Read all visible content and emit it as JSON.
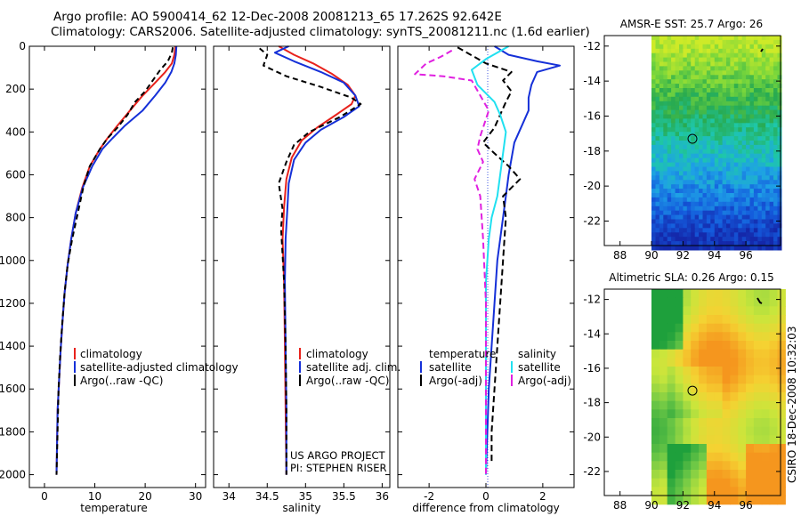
{
  "header": {
    "line1": "Argo profile: AO 5900414_62 12-Dec-2008 20081213_65 17.262S 92.642E",
    "line2": "Climatology: CARS2006. Satellite-adjusted climatology: synTS_20081211.nc (1.6d earlier)"
  },
  "colors": {
    "climatology": "#e8221c",
    "satellite": "#1530d8",
    "argo": "#000000",
    "argo_sal_diff": "#e020e0",
    "sat_sal_diff": "#20e0f0"
  },
  "chart_data": [
    {
      "id": "temperature",
      "type": "line",
      "xlabel": "temperature",
      "ylabel": "",
      "xlim": [
        -3,
        32
      ],
      "ylim": [
        2060,
        0
      ],
      "xticks": [
        0,
        10,
        20,
        30
      ],
      "yticks": [
        0,
        200,
        400,
        600,
        800,
        1000,
        1200,
        1400,
        1600,
        1800,
        2000
      ],
      "legend": [
        "climatology",
        "satellite-adjusted climatology",
        "Argo(..raw -QC)"
      ],
      "series": [
        {
          "name": "climatology",
          "color": "#e8221c",
          "x": [
            26,
            25.8,
            25.3,
            24,
            22,
            19.5,
            17,
            14.5,
            12.5,
            11,
            9,
            7.5,
            6.2,
            5.3,
            4.6,
            4,
            3.6,
            3.2,
            2.9,
            2.6,
            2.5,
            2.4
          ],
          "y": [
            0,
            40,
            80,
            120,
            170,
            230,
            300,
            370,
            430,
            480,
            560,
            660,
            780,
            900,
            1020,
            1150,
            1280,
            1420,
            1560,
            1700,
            1850,
            2000
          ]
        },
        {
          "name": "satellite-adjusted climatology",
          "color": "#1530d8",
          "x": [
            26.2,
            26.1,
            25.8,
            25.2,
            24,
            22,
            19.5,
            16,
            13.5,
            11.5,
            9.5,
            7.6,
            6.2,
            5.3,
            4.6,
            4,
            3.6,
            3.2,
            2.9,
            2.6,
            2.5,
            2.4
          ],
          "y": [
            0,
            40,
            80,
            120,
            170,
            230,
            300,
            370,
            430,
            480,
            560,
            660,
            780,
            900,
            1020,
            1150,
            1280,
            1420,
            1560,
            1700,
            1850,
            2000
          ]
        },
        {
          "name": "Argo(..raw -QC)",
          "color": "#000000",
          "dash": "6,4",
          "x": [
            25.5,
            25.3,
            24.5,
            23,
            21.5,
            20,
            18,
            16.5,
            14.5,
            12.5,
            11,
            9,
            7.8,
            6.8,
            5.5,
            4.6,
            4,
            3.5,
            3.1,
            2.8,
            2.6,
            2.4
          ],
          "y": [
            5,
            30,
            70,
            110,
            160,
            210,
            260,
            320,
            380,
            430,
            480,
            560,
            650,
            760,
            900,
            1020,
            1150,
            1300,
            1450,
            1600,
            1800,
            2000
          ]
        }
      ]
    },
    {
      "id": "salinity",
      "type": "line",
      "xlabel": "salinity",
      "ylabel": "",
      "xlim": [
        33.8,
        36.1
      ],
      "ylim": [
        2060,
        0
      ],
      "xticks": [
        34,
        34.5,
        35,
        35.5,
        36
      ],
      "yticks": [
        0,
        200,
        400,
        600,
        800,
        1000,
        1200,
        1400,
        1600,
        1800,
        2000
      ],
      "legend": [
        "climatology",
        "satellite adj. clim.",
        "Argo(..raw -QC)"
      ],
      "series": [
        {
          "name": "climatology",
          "color": "#e8221c",
          "x": [
            34.65,
            34.85,
            35.1,
            35.35,
            35.55,
            35.65,
            35.6,
            35.4,
            35.15,
            34.95,
            34.82,
            34.75,
            34.72,
            34.7,
            34.72,
            34.73,
            34.74,
            34.75
          ],
          "y": [
            0,
            40,
            80,
            130,
            180,
            230,
            270,
            320,
            380,
            440,
            520,
            620,
            750,
            900,
            1100,
            1400,
            1700,
            2000
          ]
        },
        {
          "name": "satellite adj. clim.",
          "color": "#1530d8",
          "x": [
            34.78,
            34.6,
            34.85,
            35.2,
            35.5,
            35.65,
            35.7,
            35.5,
            35.2,
            35,
            34.85,
            34.78,
            34.76,
            34.74,
            34.73,
            34.74,
            34.75,
            34.75
          ],
          "y": [
            0,
            30,
            70,
            120,
            170,
            230,
            280,
            330,
            390,
            450,
            530,
            640,
            780,
            900,
            1100,
            1400,
            1700,
            2000
          ]
        },
        {
          "name": "Argo(..raw -QC)",
          "color": "#000000",
          "dash": "6,4",
          "x": [
            34.4,
            34.5,
            34.45,
            34.75,
            35.2,
            35.6,
            35.72,
            35.45,
            35.05,
            34.85,
            34.75,
            34.65,
            34.7,
            34.68,
            34.72,
            34.74,
            34.75,
            34.75
          ],
          "y": [
            10,
            40,
            90,
            140,
            190,
            240,
            270,
            330,
            400,
            460,
            540,
            640,
            760,
            850,
            1100,
            1400,
            1700,
            2000
          ]
        }
      ],
      "annotations": [
        "US ARGO PROJECT",
        "PI: STEPHEN RISER"
      ]
    },
    {
      "id": "difference",
      "type": "line",
      "xlabel": "difference from climatology",
      "ylabel": "",
      "xlim": [
        -3.1,
        3.1
      ],
      "ylim": [
        2060,
        0
      ],
      "xticks": [
        -2,
        0,
        2
      ],
      "yticks": [
        0,
        200,
        400,
        600,
        800,
        1000,
        1200,
        1400,
        1600,
        1800,
        2000
      ],
      "legend_titles": [
        "temperature",
        "salinity"
      ],
      "legend": [
        "satellite",
        "Argo(-adj)",
        "satellite",
        "Argo(-adj)"
      ],
      "series": [
        {
          "name": "temperature satellite",
          "color": "#1530d8",
          "x": [
            0.3,
            0.8,
            1.8,
            2.6,
            1.8,
            1.6,
            1.5,
            1.5,
            1.3,
            1.0,
            0.8,
            0.7,
            0.6,
            0.5,
            0.4,
            0.3,
            0.2,
            0.1,
            0.05,
            0.0
          ],
          "y": [
            0,
            40,
            70,
            90,
            120,
            180,
            240,
            300,
            360,
            450,
            600,
            700,
            800,
            900,
            1000,
            1200,
            1400,
            1600,
            1800,
            2000
          ]
        },
        {
          "name": "temperature Argo(-adj)",
          "color": "#000000",
          "dash": "7,4",
          "x": [
            -1,
            0,
            0.9,
            0.6,
            0.9,
            0.7,
            0.5,
            0.3,
            -0.1,
            0.3,
            0.8,
            1.2,
            0.6,
            0.7,
            0.6,
            0.5,
            0.4,
            0.3,
            0.2,
            0.2
          ],
          "y": [
            5,
            80,
            120,
            160,
            210,
            260,
            320,
            380,
            450,
            500,
            560,
            620,
            700,
            800,
            1000,
            1200,
            1400,
            1600,
            1800,
            1950
          ]
        },
        {
          "name": "salinity satellite",
          "color": "#20e0f0",
          "x": [
            0.8,
            0,
            -0.5,
            -0.3,
            0.3,
            0.5,
            0.7,
            0.6,
            0.5,
            0.4,
            0.2,
            0.1,
            0,
            0,
            0,
            0
          ],
          "y": [
            0,
            60,
            110,
            180,
            260,
            320,
            400,
            500,
            600,
            700,
            800,
            900,
            1100,
            1400,
            1700,
            2000
          ]
        },
        {
          "name": "salinity Argo(-adj)",
          "color": "#e020e0",
          "dash": "7,4",
          "x": [
            -1.2,
            -1.6,
            -2.1,
            -2.5,
            -1.5,
            -0.5,
            0.1,
            -0.2,
            -0.3,
            -0.1,
            -0.4,
            -0.2,
            -0.1,
            0,
            0,
            0
          ],
          "y": [
            20,
            50,
            80,
            130,
            140,
            160,
            300,
            420,
            480,
            540,
            620,
            700,
            900,
            1200,
            1600,
            2000
          ]
        }
      ]
    },
    {
      "id": "sst-map",
      "type": "heatmap",
      "title": "AMSR-E SST: 25.7 Argo: 26",
      "xlim": [
        87,
        98.2
      ],
      "ylim": [
        -23.4,
        -11.4
      ],
      "xticks": [
        88,
        90,
        92,
        94,
        96
      ],
      "yticks": [
        -12,
        -14,
        -16,
        -18,
        -20,
        -22
      ],
      "data_xlim": [
        90,
        98.2
      ],
      "marker": {
        "lon": 92.6,
        "lat": -17.3
      }
    },
    {
      "id": "sla-map",
      "type": "heatmap",
      "title": "Altimetric SLA: 0.26 Argo: 0.15",
      "xlim": [
        87,
        98.2
      ],
      "ylim": [
        -23.4,
        -11.4
      ],
      "xticks": [
        88,
        90,
        92,
        94,
        96
      ],
      "yticks": [
        -12,
        -14,
        -16,
        -18,
        -20,
        -22
      ],
      "data_xlim": [
        90,
        98.2
      ],
      "marker": {
        "lon": 92.6,
        "lat": -17.3
      },
      "side_label": "CSIRO 18-Dec-2008 10:32:03"
    }
  ]
}
